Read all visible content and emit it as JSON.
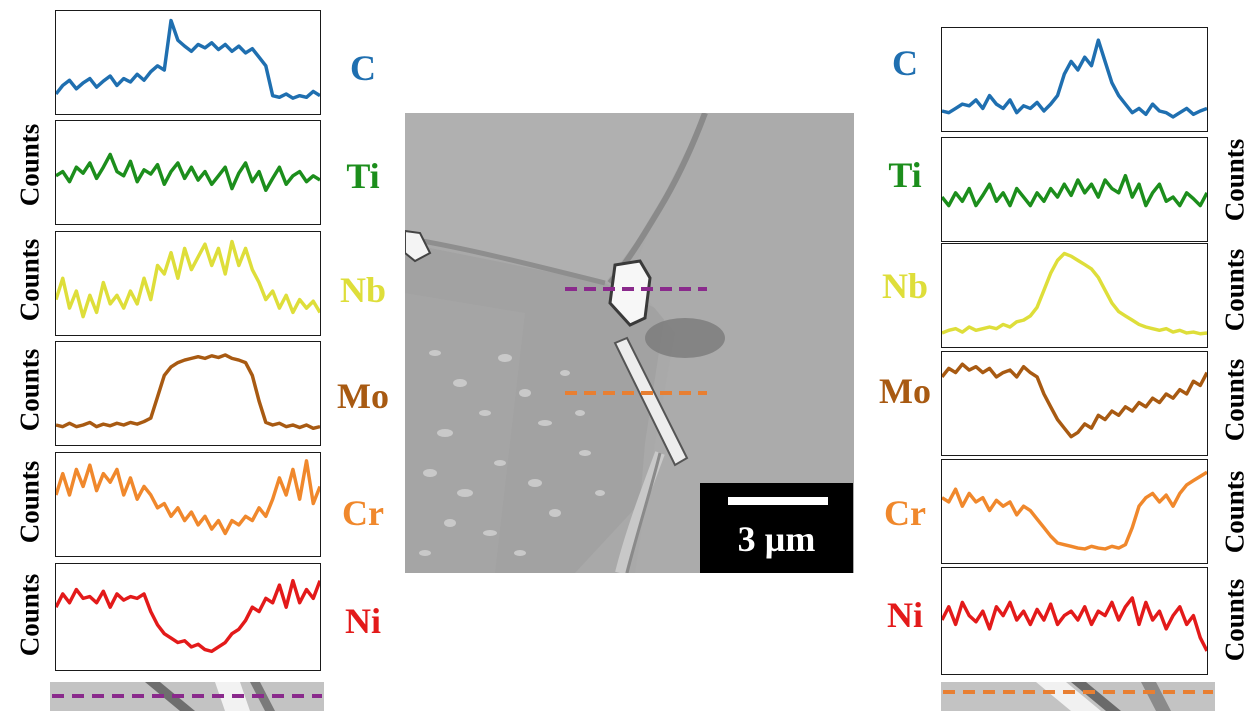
{
  "colors": {
    "C": "#1f6fb0",
    "Ti": "#1c8e1c",
    "Nb": "#dede3a",
    "Mo": "#a85a12",
    "Cr": "#f0882c",
    "Ni": "#e31a1a",
    "purple_line": "#8a2a8c",
    "orange_line": "#e87f32"
  },
  "left_profiles": [
    {
      "element": "C",
      "color": "#1f6fb0",
      "values": [
        0.12,
        0.22,
        0.28,
        0.18,
        0.25,
        0.3,
        0.2,
        0.27,
        0.33,
        0.22,
        0.3,
        0.26,
        0.35,
        0.28,
        0.38,
        0.45,
        0.4,
        0.98,
        0.75,
        0.68,
        0.62,
        0.7,
        0.66,
        0.72,
        0.64,
        0.7,
        0.62,
        0.68,
        0.6,
        0.65,
        0.55,
        0.45,
        0.1,
        0.08,
        0.12,
        0.07,
        0.1,
        0.08,
        0.15,
        0.1
      ]
    },
    {
      "element": "Ti",
      "color": "#1c8e1c",
      "values": [
        0.45,
        0.5,
        0.38,
        0.55,
        0.48,
        0.6,
        0.42,
        0.55,
        0.7,
        0.5,
        0.45,
        0.62,
        0.38,
        0.52,
        0.47,
        0.58,
        0.35,
        0.5,
        0.6,
        0.42,
        0.55,
        0.4,
        0.5,
        0.35,
        0.45,
        0.55,
        0.3,
        0.48,
        0.6,
        0.38,
        0.5,
        0.28,
        0.42,
        0.55,
        0.35,
        0.45,
        0.5,
        0.38,
        0.45,
        0.4
      ]
    },
    {
      "element": "Nb",
      "color": "#dede3a",
      "values": [
        0.3,
        0.55,
        0.2,
        0.4,
        0.1,
        0.35,
        0.15,
        0.5,
        0.25,
        0.35,
        0.2,
        0.4,
        0.25,
        0.55,
        0.3,
        0.7,
        0.6,
        0.85,
        0.55,
        0.9,
        0.65,
        0.8,
        0.95,
        0.7,
        0.9,
        0.6,
        0.98,
        0.7,
        0.9,
        0.65,
        0.5,
        0.3,
        0.4,
        0.2,
        0.35,
        0.15,
        0.3,
        0.2,
        0.28,
        0.15
      ]
    },
    {
      "element": "Mo",
      "color": "#a85a12",
      "values": [
        0.12,
        0.1,
        0.14,
        0.1,
        0.12,
        0.15,
        0.1,
        0.13,
        0.11,
        0.14,
        0.12,
        0.15,
        0.13,
        0.16,
        0.2,
        0.45,
        0.7,
        0.8,
        0.85,
        0.88,
        0.9,
        0.92,
        0.9,
        0.93,
        0.91,
        0.94,
        0.9,
        0.88,
        0.85,
        0.7,
        0.4,
        0.15,
        0.12,
        0.14,
        0.1,
        0.12,
        0.09,
        0.12,
        0.08,
        0.1
      ]
    },
    {
      "element": "Cr",
      "color": "#f0882c",
      "values": [
        0.6,
        0.85,
        0.6,
        0.9,
        0.7,
        0.95,
        0.65,
        0.85,
        0.75,
        0.9,
        0.6,
        0.8,
        0.55,
        0.7,
        0.6,
        0.45,
        0.5,
        0.35,
        0.45,
        0.3,
        0.4,
        0.25,
        0.35,
        0.2,
        0.3,
        0.15,
        0.3,
        0.25,
        0.35,
        0.3,
        0.45,
        0.35,
        0.55,
        0.8,
        0.6,
        0.9,
        0.55,
        1.0,
        0.5,
        0.7
      ]
    },
    {
      "element": "Ni",
      "color": "#e31a1a",
      "values": [
        0.6,
        0.75,
        0.65,
        0.8,
        0.7,
        0.72,
        0.65,
        0.78,
        0.6,
        0.75,
        0.68,
        0.72,
        0.7,
        0.75,
        0.55,
        0.4,
        0.3,
        0.25,
        0.2,
        0.22,
        0.15,
        0.18,
        0.12,
        0.1,
        0.15,
        0.2,
        0.3,
        0.35,
        0.45,
        0.6,
        0.55,
        0.7,
        0.65,
        0.85,
        0.6,
        0.9,
        0.65,
        0.8,
        0.7,
        0.9
      ]
    }
  ],
  "right_profiles": [
    {
      "element": "C",
      "color": "#1f6fb0",
      "values": [
        0.12,
        0.1,
        0.15,
        0.2,
        0.18,
        0.25,
        0.15,
        0.3,
        0.2,
        0.15,
        0.25,
        0.1,
        0.18,
        0.15,
        0.22,
        0.12,
        0.2,
        0.3,
        0.55,
        0.7,
        0.6,
        0.75,
        0.65,
        0.95,
        0.7,
        0.45,
        0.3,
        0.2,
        0.1,
        0.15,
        0.08,
        0.2,
        0.12,
        0.1,
        0.05,
        0.1,
        0.15,
        0.08,
        0.12,
        0.15
      ]
    },
    {
      "element": "Ti",
      "color": "#1c8e1c",
      "values": [
        0.4,
        0.3,
        0.45,
        0.35,
        0.5,
        0.3,
        0.42,
        0.55,
        0.35,
        0.45,
        0.3,
        0.5,
        0.4,
        0.3,
        0.45,
        0.35,
        0.5,
        0.4,
        0.55,
        0.42,
        0.6,
        0.45,
        0.55,
        0.4,
        0.6,
        0.5,
        0.45,
        0.65,
        0.4,
        0.55,
        0.3,
        0.45,
        0.55,
        0.35,
        0.4,
        0.3,
        0.45,
        0.38,
        0.3,
        0.45
      ]
    },
    {
      "element": "Nb",
      "color": "#dede3a",
      "values": [
        0.05,
        0.08,
        0.1,
        0.06,
        0.12,
        0.08,
        0.1,
        0.12,
        0.1,
        0.15,
        0.12,
        0.18,
        0.2,
        0.25,
        0.35,
        0.55,
        0.75,
        0.9,
        0.98,
        0.95,
        0.9,
        0.85,
        0.8,
        0.7,
        0.55,
        0.4,
        0.3,
        0.25,
        0.2,
        0.15,
        0.12,
        0.1,
        0.08,
        0.1,
        0.06,
        0.08,
        0.05,
        0.06,
        0.04,
        0.05
      ]
    },
    {
      "element": "Mo",
      "color": "#a85a12",
      "values": [
        0.8,
        0.9,
        0.85,
        0.95,
        0.88,
        0.92,
        0.85,
        0.9,
        0.8,
        0.85,
        0.88,
        0.8,
        0.92,
        0.85,
        0.8,
        0.6,
        0.45,
        0.3,
        0.2,
        0.1,
        0.15,
        0.25,
        0.2,
        0.35,
        0.3,
        0.4,
        0.35,
        0.45,
        0.4,
        0.5,
        0.45,
        0.55,
        0.5,
        0.6,
        0.55,
        0.65,
        0.6,
        0.75,
        0.7,
        0.85
      ]
    },
    {
      "element": "Cr",
      "color": "#f0882c",
      "values": [
        0.65,
        0.6,
        0.75,
        0.55,
        0.7,
        0.6,
        0.65,
        0.5,
        0.62,
        0.55,
        0.6,
        0.45,
        0.55,
        0.5,
        0.4,
        0.3,
        0.2,
        0.12,
        0.1,
        0.08,
        0.06,
        0.05,
        0.08,
        0.06,
        0.05,
        0.08,
        0.06,
        0.1,
        0.3,
        0.55,
        0.65,
        0.7,
        0.6,
        0.68,
        0.55,
        0.7,
        0.8,
        0.85,
        0.9,
        0.95
      ]
    },
    {
      "element": "Ni",
      "color": "#e31a1a",
      "values": [
        0.5,
        0.65,
        0.45,
        0.7,
        0.55,
        0.48,
        0.6,
        0.4,
        0.65,
        0.55,
        0.7,
        0.5,
        0.6,
        0.45,
        0.62,
        0.5,
        0.68,
        0.45,
        0.55,
        0.6,
        0.5,
        0.65,
        0.45,
        0.6,
        0.55,
        0.7,
        0.5,
        0.65,
        0.75,
        0.45,
        0.7,
        0.5,
        0.6,
        0.4,
        0.55,
        0.65,
        0.45,
        0.55,
        0.3,
        0.15
      ]
    }
  ],
  "labels": {
    "counts": "Counts",
    "scale": "3 µm"
  }
}
